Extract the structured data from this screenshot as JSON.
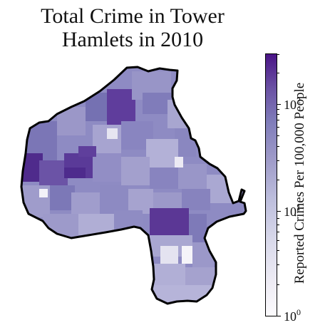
{
  "title_lines": [
    "Total Crime in Tower",
    "Hamlets in 2010"
  ],
  "colorbar": {
    "label": "Reported Crimes Per 100,000 People",
    "scale": "log",
    "range": [
      1,
      280
    ],
    "ticks": [
      {
        "base": "10",
        "exp": "0",
        "value": 1
      },
      {
        "base": "10",
        "exp": "1",
        "value": 10
      },
      {
        "base": "10",
        "exp": "2",
        "value": 100
      }
    ],
    "colormap": "Purples",
    "colors": [
      "#fcfbfd",
      "#efedf5",
      "#dadaeb",
      "#bcbddc",
      "#9e9ac8",
      "#807dba",
      "#6a51a3",
      "#4a1486"
    ]
  },
  "map": {
    "region": "Tower Hamlets",
    "year": "2010",
    "border_color": "#000000"
  }
}
